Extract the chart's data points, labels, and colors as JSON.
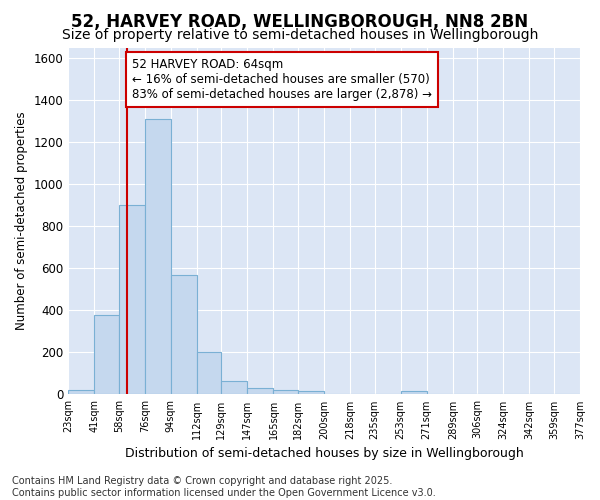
{
  "title": "52, HARVEY ROAD, WELLINGBOROUGH, NN8 2BN",
  "subtitle": "Size of property relative to semi-detached houses in Wellingborough",
  "xlabel": "Distribution of semi-detached houses by size in Wellingborough",
  "ylabel": "Number of semi-detached properties",
  "annotation_title": "52 HARVEY ROAD: 64sqm",
  "annotation_line1": "← 16% of semi-detached houses are smaller (570)",
  "annotation_line2": "83% of semi-detached houses are larger (2,878) →",
  "footer_line1": "Contains HM Land Registry data © Crown copyright and database right 2025.",
  "footer_line2": "Contains public sector information licensed under the Open Government Licence v3.0.",
  "bin_edges": [
    23,
    41,
    58,
    76,
    94,
    112,
    129,
    147,
    165,
    182,
    200,
    218,
    235,
    253,
    271,
    289,
    306,
    324,
    342,
    359,
    377
  ],
  "bin_labels": [
    "23sqm",
    "41sqm",
    "58sqm",
    "76sqm",
    "94sqm",
    "112sqm",
    "129sqm",
    "147sqm",
    "165sqm",
    "182sqm",
    "200sqm",
    "218sqm",
    "235sqm",
    "253sqm",
    "271sqm",
    "289sqm",
    "306sqm",
    "324sqm",
    "342sqm",
    "359sqm",
    "377sqm"
  ],
  "bar_heights": [
    20,
    380,
    900,
    1310,
    570,
    200,
    65,
    30,
    20,
    15,
    0,
    0,
    0,
    15,
    0,
    0,
    0,
    0,
    0,
    0
  ],
  "bar_color": "#c5d8ee",
  "bar_edgecolor": "#7ab0d4",
  "vline_color": "#cc0000",
  "vline_x": 64,
  "ylim": [
    0,
    1650
  ],
  "yticks": [
    0,
    200,
    400,
    600,
    800,
    1000,
    1200,
    1400,
    1600
  ],
  "plot_bg_color": "#dce6f5",
  "fig_bg_color": "#ffffff",
  "grid_color": "#ffffff",
  "title_fontsize": 12,
  "subtitle_fontsize": 10,
  "annotation_fontsize": 8.5,
  "footer_fontsize": 7
}
